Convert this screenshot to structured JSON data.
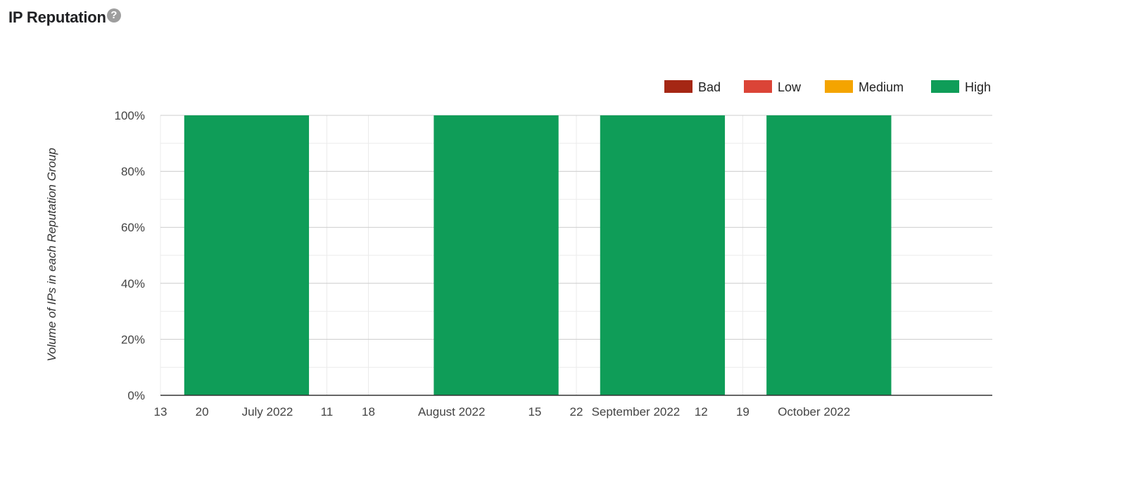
{
  "header": {
    "title": "IP Reputation",
    "help_glyph": "?"
  },
  "colors": {
    "bad": "#a52714",
    "low": "#db4437",
    "medium": "#f4a400",
    "high": "#0f9d58"
  },
  "chart_data": {
    "type": "bar",
    "stacked": true,
    "title": "",
    "xlabel": "",
    "ylabel": "Volume of IPs in each Reputation Group",
    "ylim": [
      0,
      100
    ],
    "y_ticks": [
      "0%",
      "20%",
      "40%",
      "60%",
      "80%",
      "100%"
    ],
    "x_axis": {
      "type": "date",
      "range": [
        "2022-06-13",
        "2022-10-31"
      ],
      "tick_labels": [
        {
          "date": "2022-06-13",
          "label": "13"
        },
        {
          "date": "2022-06-20",
          "label": "20"
        },
        {
          "date": "2022-07-01",
          "label": "July 2022"
        },
        {
          "date": "2022-07-11",
          "label": "11"
        },
        {
          "date": "2022-07-18",
          "label": "18"
        },
        {
          "date": "2022-08-01",
          "label": "August 2022"
        },
        {
          "date": "2022-08-15",
          "label": "15"
        },
        {
          "date": "2022-08-22",
          "label": "22"
        },
        {
          "date": "2022-09-01",
          "label": "September 2022"
        },
        {
          "date": "2022-09-12",
          "label": "12"
        },
        {
          "date": "2022-09-19",
          "label": "19"
        },
        {
          "date": "2022-10-01",
          "label": "October 2022"
        }
      ]
    },
    "legend_position": "top-right",
    "grid": true,
    "series": [
      {
        "name": "Bad",
        "color": "#a52714",
        "values": [
          0,
          0,
          0,
          0
        ]
      },
      {
        "name": "Low",
        "color": "#db4437",
        "values": [
          0,
          0,
          0,
          0
        ]
      },
      {
        "name": "Medium",
        "color": "#f4a400",
        "values": [
          0,
          0,
          0,
          0
        ]
      },
      {
        "name": "High",
        "color": "#0f9d58",
        "values": [
          100,
          100,
          100,
          100
        ]
      }
    ],
    "bars": [
      {
        "start": "2022-06-17",
        "end": "2022-07-08"
      },
      {
        "start": "2022-07-29",
        "end": "2022-08-19"
      },
      {
        "start": "2022-08-26",
        "end": "2022-09-16"
      },
      {
        "start": "2022-09-23",
        "end": "2022-10-14"
      }
    ]
  }
}
